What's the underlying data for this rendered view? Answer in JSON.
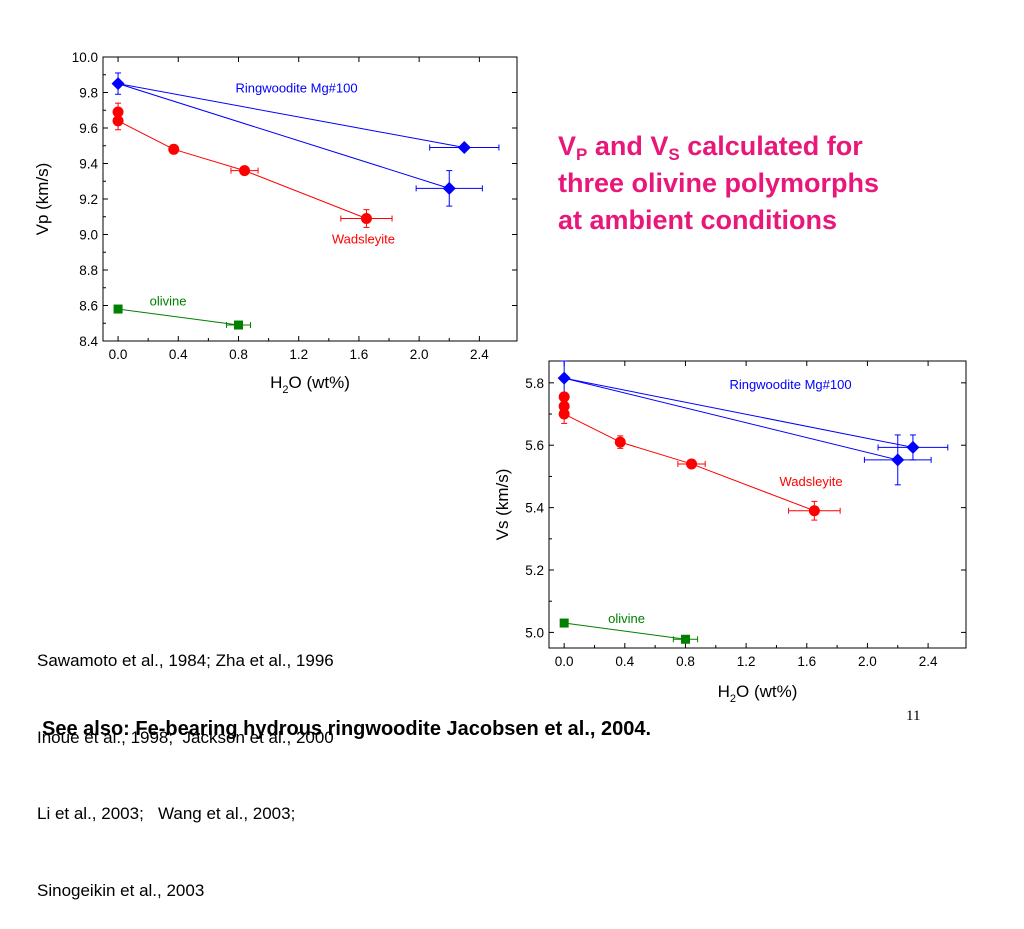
{
  "title": {
    "v": "V",
    "p_sub": "P",
    "and": " and V",
    "s_sub": "S",
    "rest_line1": " calculated for",
    "line2": "three olivine polymorphs",
    "line3": "at ambient conditions"
  },
  "references": [
    "Sawamoto et al., 1984; Zha et al., 1996",
    "Inoue et al., 1998;  Jackson et al., 2000",
    "Li et al., 2003;   Wang et al., 2003;",
    "Sinogeikin et al., 2003"
  ],
  "slide_number": "11",
  "footer": "See also: Fe-bearing hydrous ringwoodite Jacobsen et al., 2004.",
  "chart_data": [
    {
      "type": "scatter",
      "xlabel_main": "H",
      "xlabel_sub": "2",
      "xlabel_rest": "O (wt%)",
      "ylabel": "Vp (km/s)",
      "xlim": [
        -0.1,
        2.65
      ],
      "ylim": [
        8.4,
        10.0
      ],
      "xticks": [
        0.0,
        0.4,
        0.8,
        1.2,
        1.6,
        2.0,
        2.4
      ],
      "xtick_labels": [
        "0.0",
        "0.4",
        "0.8",
        "1.2",
        "1.6",
        "2.0",
        "2.4"
      ],
      "yticks": [
        8.4,
        8.6,
        8.8,
        9.0,
        9.2,
        9.4,
        9.6,
        9.8,
        10.0
      ],
      "ytick_labels": [
        "8.4",
        "8.6",
        "8.8",
        "9.0",
        "9.2",
        "9.4",
        "9.6",
        "9.8",
        "10.0"
      ],
      "series": [
        {
          "name": "Ringwoodite Mg#100",
          "color": "#0000ff",
          "marker": "diamond",
          "points": [
            {
              "x": 0.0,
              "y": 9.85,
              "xerr": 0.0,
              "yerr": 0.06
            },
            {
              "x": 2.3,
              "y": 9.49,
              "xerr": 0.23,
              "yerr": 0.0
            },
            {
              "x": 2.2,
              "y": 9.26,
              "xerr": 0.22,
              "yerr": 0.1
            }
          ],
          "lines": [
            [
              0,
              1
            ],
            [
              0,
              2
            ]
          ],
          "label_pos": [
            0.78,
            9.8
          ]
        },
        {
          "name": "Wadsleyite",
          "color": "#ff0000",
          "marker": "circle",
          "points": [
            {
              "x": 0.0,
              "y": 9.69,
              "xerr": 0.0,
              "yerr": 0.05
            },
            {
              "x": 0.0,
              "y": 9.64,
              "xerr": 0.0,
              "yerr": 0.05
            },
            {
              "x": 0.37,
              "y": 9.48,
              "xerr": 0.0,
              "yerr": 0.0
            },
            {
              "x": 0.84,
              "y": 9.36,
              "xerr": 0.09,
              "yerr": 0.0
            },
            {
              "x": 1.65,
              "y": 9.09,
              "xerr": 0.17,
              "yerr": 0.05
            }
          ],
          "lines": [
            [
              1,
              2
            ],
            [
              2,
              3
            ],
            [
              3,
              4
            ]
          ],
          "label_pos": [
            1.42,
            8.95
          ]
        },
        {
          "name": "olivine",
          "color": "#008000",
          "marker": "square",
          "points": [
            {
              "x": 0.0,
              "y": 8.58,
              "xerr": 0.0,
              "yerr": 0.0
            },
            {
              "x": 0.8,
              "y": 8.49,
              "xerr": 0.08,
              "yerr": 0.0
            }
          ],
          "lines": [
            [
              0,
              1
            ]
          ],
          "label_pos": [
            0.21,
            8.6
          ]
        }
      ]
    },
    {
      "type": "scatter",
      "xlabel_main": "H",
      "xlabel_sub": "2",
      "xlabel_rest": "O (wt%)",
      "ylabel": "Vs (km/s)",
      "xlim": [
        -0.1,
        2.65
      ],
      "ylim": [
        4.95,
        5.87
      ],
      "xticks": [
        0.0,
        0.4,
        0.8,
        1.2,
        1.6,
        2.0,
        2.4
      ],
      "xtick_labels": [
        "0.0",
        "0.4",
        "0.8",
        "1.2",
        "1.6",
        "2.0",
        "2.4"
      ],
      "yticks": [
        5.0,
        5.2,
        5.4,
        5.6,
        5.8
      ],
      "ytick_labels": [
        "5.0",
        "5.2",
        "5.4",
        "5.6",
        "5.8"
      ],
      "series": [
        {
          "name": "Ringwoodite Mg#100",
          "color": "#0000ff",
          "marker": "diamond",
          "points": [
            {
              "x": 0.0,
              "y": 5.815,
              "xerr": 0.0,
              "yerr": 0.055
            },
            {
              "x": 2.3,
              "y": 5.593,
              "xerr": 0.23,
              "yerr": 0.04
            },
            {
              "x": 2.2,
              "y": 5.553,
              "xerr": 0.22,
              "yerr": 0.08
            }
          ],
          "lines": [
            [
              0,
              1
            ],
            [
              0,
              2
            ]
          ],
          "label_pos": [
            1.09,
            5.78
          ]
        },
        {
          "name": "Wadsleyite",
          "color": "#ff0000",
          "marker": "circle",
          "points": [
            {
              "x": 0.0,
              "y": 5.755,
              "xerr": 0.0,
              "yerr": 0.0
            },
            {
              "x": 0.0,
              "y": 5.725,
              "xerr": 0.0,
              "yerr": 0.0
            },
            {
              "x": 0.0,
              "y": 5.7,
              "xerr": 0.0,
              "yerr": 0.03
            },
            {
              "x": 0.37,
              "y": 5.61,
              "xerr": 0.0,
              "yerr": 0.02
            },
            {
              "x": 0.84,
              "y": 5.54,
              "xerr": 0.09,
              "yerr": 0.0
            },
            {
              "x": 1.65,
              "y": 5.39,
              "xerr": 0.17,
              "yerr": 0.03
            }
          ],
          "lines": [
            [
              2,
              3
            ],
            [
              3,
              4
            ],
            [
              4,
              5
            ]
          ],
          "label_pos": [
            1.42,
            5.47
          ]
        },
        {
          "name": "olivine",
          "color": "#008000",
          "marker": "square",
          "points": [
            {
              "x": 0.0,
              "y": 5.03,
              "xerr": 0.0,
              "yerr": 0.0
            },
            {
              "x": 0.8,
              "y": 4.978,
              "xerr": 0.08,
              "yerr": 0.0
            }
          ],
          "lines": [
            [
              0,
              1
            ]
          ],
          "label_pos": [
            0.29,
            5.03
          ]
        }
      ]
    }
  ]
}
